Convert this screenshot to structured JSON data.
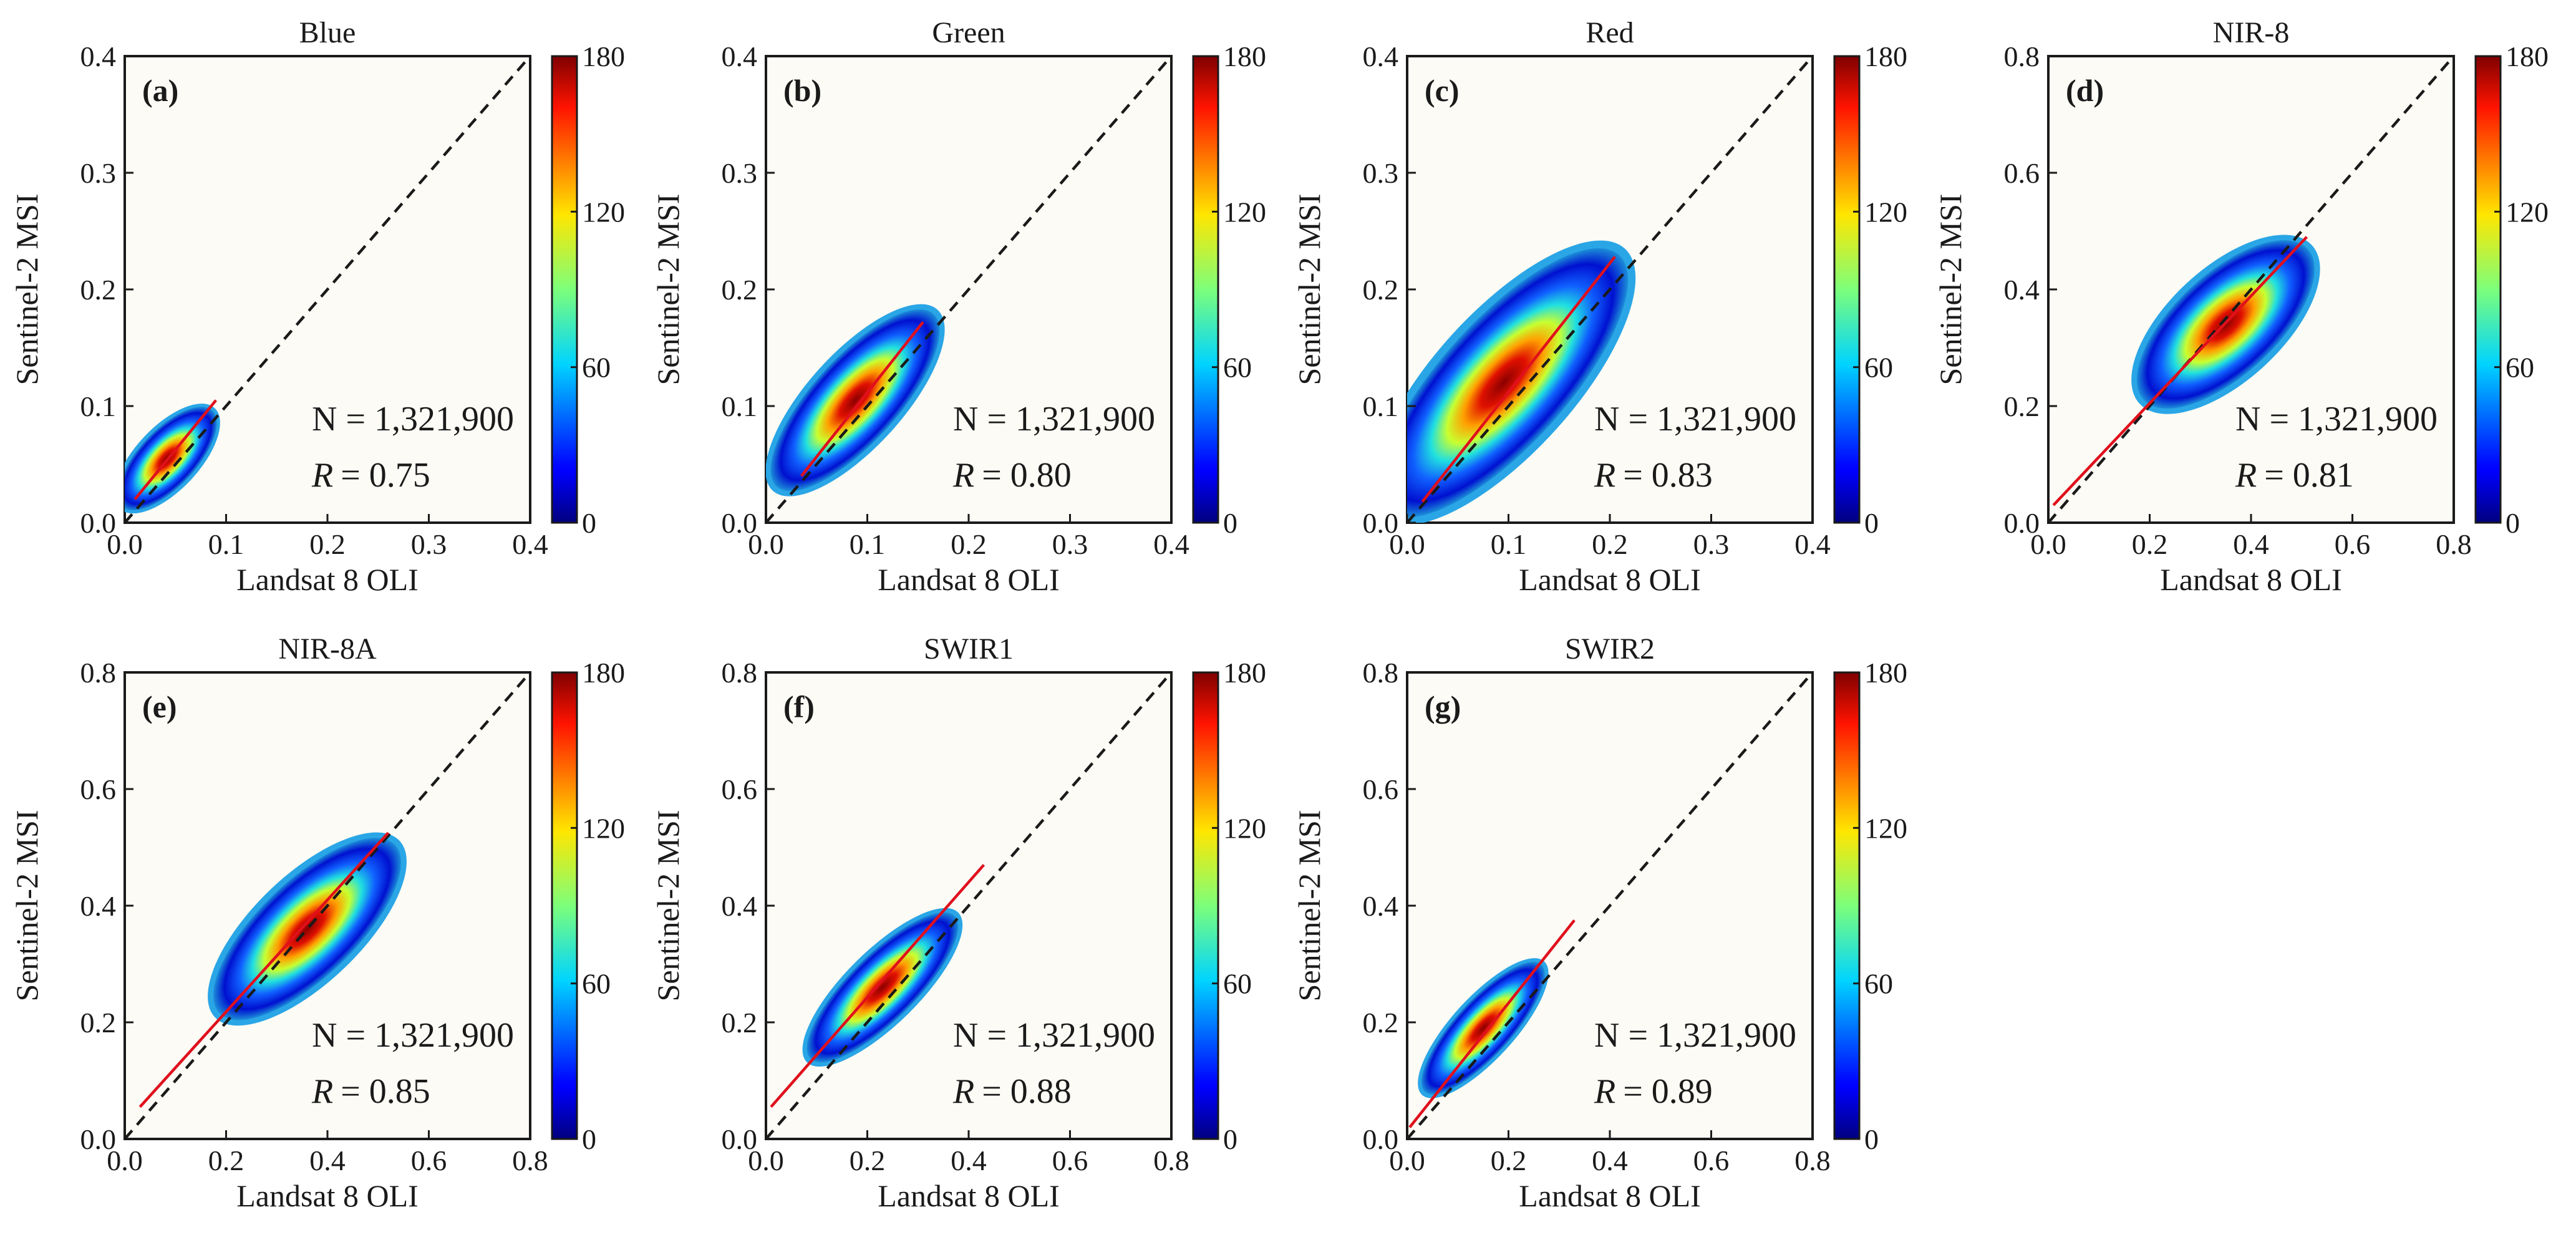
{
  "figure": {
    "description_labels": {
      "xlabel": "Landsat 8 OLI",
      "ylabel": "Sentinel-2 MSI"
    }
  },
  "chart_data": [
    {
      "type": "scatter",
      "panel": "(a)",
      "title": "Blue",
      "xlabel": "Landsat 8 OLI",
      "ylabel": "Sentinel-2 MSI",
      "xlim": [
        0,
        0.4
      ],
      "ylim": [
        0,
        0.4
      ],
      "xticks": [
        "0.0",
        "0.1",
        "0.2",
        "0.3",
        "0.4"
      ],
      "yticks": [
        "0.0",
        "0.1",
        "0.2",
        "0.3",
        "0.4"
      ],
      "n_label": "N = 1,321,900",
      "r_label": "R",
      "r_value": "= 0.75",
      "fit_line": {
        "x": [
          0.01,
          0.09
        ],
        "y": [
          0.02,
          0.105
        ]
      },
      "cloud": {
        "center": [
          0.042,
          0.055
        ],
        "major": 0.065,
        "minor": 0.028
      },
      "colorbar": {
        "min": 0,
        "max": 180,
        "ticks": [
          "0",
          "60",
          "120",
          "180"
        ]
      }
    },
    {
      "type": "scatter",
      "panel": "(b)",
      "title": "Green",
      "xlabel": "Landsat 8 OLI",
      "ylabel": "Sentinel-2 MSI",
      "xlim": [
        0,
        0.4
      ],
      "ylim": [
        0,
        0.4
      ],
      "xticks": [
        "0.0",
        "0.1",
        "0.2",
        "0.3",
        "0.4"
      ],
      "yticks": [
        "0.0",
        "0.1",
        "0.2",
        "0.3",
        "0.4"
      ],
      "n_label": "N = 1,321,900",
      "r_label": "R",
      "r_value": "= 0.80",
      "fit_line": {
        "x": [
          0.035,
          0.155
        ],
        "y": [
          0.04,
          0.172
        ]
      },
      "cloud": {
        "center": [
          0.088,
          0.105
        ],
        "major": 0.115,
        "minor": 0.042
      },
      "colorbar": {
        "min": 0,
        "max": 180,
        "ticks": [
          "0",
          "60",
          "120",
          "180"
        ]
      }
    },
    {
      "type": "scatter",
      "panel": "(c)",
      "title": "Red",
      "xlabel": "Landsat 8 OLI",
      "ylabel": "Sentinel-2 MSI",
      "xlim": [
        0,
        0.4
      ],
      "ylim": [
        0,
        0.4
      ],
      "xticks": [
        "0.0",
        "0.1",
        "0.2",
        "0.3",
        "0.4"
      ],
      "yticks": [
        "0.0",
        "0.1",
        "0.2",
        "0.3",
        "0.4"
      ],
      "n_label": "N = 1,321,900",
      "r_label": "R",
      "r_value": "= 0.83",
      "fit_line": {
        "x": [
          0.015,
          0.205
        ],
        "y": [
          0.018,
          0.228
        ]
      },
      "cloud": {
        "center": [
          0.095,
          0.12
        ],
        "major": 0.17,
        "minor": 0.062
      },
      "colorbar": {
        "min": 0,
        "max": 180,
        "ticks": [
          "0",
          "60",
          "120",
          "180"
        ]
      }
    },
    {
      "type": "scatter",
      "panel": "(d)",
      "title": "NIR-8",
      "xlabel": "Landsat 8 OLI",
      "ylabel": "Sentinel-2 MSI",
      "xlim": [
        0,
        0.8
      ],
      "ylim": [
        0,
        0.8
      ],
      "xticks": [
        "0.0",
        "0.2",
        "0.4",
        "0.6",
        "0.8"
      ],
      "yticks": [
        "0.0",
        "0.2",
        "0.4",
        "0.6",
        "0.8"
      ],
      "n_label": "N = 1,321,900",
      "r_label": "R",
      "r_value": "= 0.81",
      "fit_line": {
        "x": [
          0.01,
          0.51
        ],
        "y": [
          0.03,
          0.49
        ]
      },
      "cloud": {
        "center": [
          0.35,
          0.34
        ],
        "major": 0.22,
        "minor": 0.1
      },
      "colorbar": {
        "min": 0,
        "max": 180,
        "ticks": [
          "0",
          "60",
          "120",
          "180"
        ]
      }
    },
    {
      "type": "scatter",
      "panel": "(e)",
      "title": "NIR-8A",
      "xlabel": "Landsat 8 OLI",
      "ylabel": "Sentinel-2 MSI",
      "xlim": [
        0,
        0.8
      ],
      "ylim": [
        0,
        0.8
      ],
      "xticks": [
        "0.0",
        "0.2",
        "0.4",
        "0.6",
        "0.8"
      ],
      "yticks": [
        "0.0",
        "0.2",
        "0.4",
        "0.6",
        "0.8"
      ],
      "n_label": "N = 1,321,900",
      "r_label": "R",
      "r_value": "= 0.85",
      "fit_line": {
        "x": [
          0.03,
          0.52
        ],
        "y": [
          0.055,
          0.525
        ]
      },
      "cloud": {
        "center": [
          0.36,
          0.36
        ],
        "major": 0.24,
        "minor": 0.095
      },
      "colorbar": {
        "min": 0,
        "max": 180,
        "ticks": [
          "0",
          "60",
          "120",
          "180"
        ]
      }
    },
    {
      "type": "scatter",
      "panel": "(f)",
      "title": "SWIR1",
      "xlabel": "Landsat 8 OLI",
      "ylabel": "Sentinel-2 MSI",
      "xlim": [
        0,
        0.8
      ],
      "ylim": [
        0,
        0.8
      ],
      "xticks": [
        "0.0",
        "0.2",
        "0.4",
        "0.6",
        "0.8"
      ],
      "yticks": [
        "0.0",
        "0.2",
        "0.4",
        "0.6",
        "0.8"
      ],
      "n_label": "N = 1,321,900",
      "r_label": "R",
      "r_value": "= 0.88",
      "fit_line": {
        "x": [
          0.01,
          0.43
        ],
        "y": [
          0.055,
          0.47
        ]
      },
      "cloud": {
        "center": [
          0.23,
          0.26
        ],
        "major": 0.2,
        "minor": 0.065
      },
      "colorbar": {
        "min": 0,
        "max": 180,
        "ticks": [
          "0",
          "60",
          "120",
          "180"
        ]
      }
    },
    {
      "type": "scatter",
      "panel": "(g)",
      "title": "SWIR2",
      "xlabel": "Landsat 8 OLI",
      "ylabel": "Sentinel-2 MSI",
      "xlim": [
        0,
        0.8
      ],
      "ylim": [
        0,
        0.8
      ],
      "xticks": [
        "0.0",
        "0.2",
        "0.4",
        "0.6",
        "0.8"
      ],
      "yticks": [
        "0.0",
        "0.2",
        "0.4",
        "0.6",
        "0.8"
      ],
      "n_label": "N = 1,321,900",
      "r_label": "R",
      "r_value": "= 0.89",
      "fit_line": {
        "x": [
          0.005,
          0.33
        ],
        "y": [
          0.02,
          0.375
        ]
      },
      "cloud": {
        "center": [
          0.15,
          0.19
        ],
        "major": 0.17,
        "minor": 0.055
      },
      "colorbar": {
        "min": 0,
        "max": 180,
        "ticks": [
          "0",
          "60",
          "120",
          "180"
        ]
      }
    }
  ]
}
